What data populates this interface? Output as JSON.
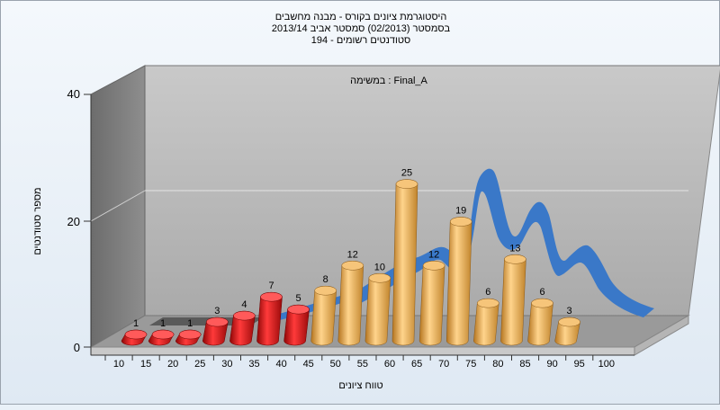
{
  "chart_data": {
    "type": "bar",
    "title_lines": [
      "היסטוגרמת ציונים בקורס - מבנה מחשבים",
      "בסמסטר (02/2013) סמסטר אביב 2013/14",
      "194 - סטודנטים רשומים"
    ],
    "annotation": "במשימה : Final_A",
    "ylabel": "מספר סטודנטים",
    "xlabel": "טווח ציונים",
    "ylim": [
      0,
      40
    ],
    "yticks": [
      "0",
      "20",
      "40"
    ],
    "xticks": [
      "10",
      "15",
      "20",
      "25",
      "30",
      "35",
      "40",
      "45",
      "50",
      "55",
      "60",
      "65",
      "70",
      "75",
      "80",
      "85",
      "90",
      "95",
      "100"
    ],
    "series": [
      {
        "values": [
          1,
          1,
          1,
          3,
          4,
          7,
          5,
          8,
          12,
          10,
          25,
          12,
          19,
          6,
          13,
          6,
          3
        ],
        "value_labels": [
          "1",
          "1",
          "1",
          "3",
          "4",
          "7",
          "5",
          "8",
          "12",
          "10",
          "25",
          "12",
          "19",
          "6",
          "13",
          "6",
          "3"
        ]
      }
    ],
    "colors": {
      "fail": "#e01818",
      "pass": "#e6a84c",
      "curve": "#3a78c8",
      "wall": "#7d7d7d",
      "back": "#b8b8b8",
      "floor": "#8c8c8c"
    }
  }
}
